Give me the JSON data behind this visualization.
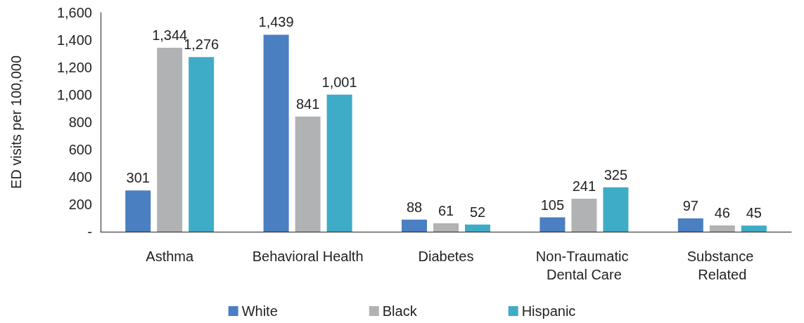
{
  "chart_data": {
    "type": "bar",
    "ylabel": "ED visits per 100,000",
    "categories": [
      "Asthma",
      "Behavioral Health",
      "Diabetes",
      "Non-Traumatic Dental Care",
      "Substance Related"
    ],
    "series": [
      {
        "name": "White",
        "color": "#4a7fc1",
        "values": [
          301,
          1439,
          88,
          105,
          97
        ],
        "value_labels": [
          "301",
          "1,439",
          "88",
          "105",
          "97"
        ]
      },
      {
        "name": "Black",
        "color": "#b1b2b4",
        "values": [
          1344,
          841,
          61,
          241,
          46
        ],
        "value_labels": [
          "1,344",
          "841",
          "61",
          "241",
          "46"
        ]
      },
      {
        "name": "Hispanic",
        "color": "#3eacc6",
        "values": [
          1276,
          1001,
          52,
          325,
          45
        ],
        "value_labels": [
          "1,276",
          "1,001",
          "52",
          "325",
          "45"
        ]
      }
    ],
    "ylim": [
      0,
      1600
    ],
    "yticks": [
      {
        "value": 0,
        "label": "-"
      },
      {
        "value": 200,
        "label": "200"
      },
      {
        "value": 400,
        "label": "400"
      },
      {
        "value": 600,
        "label": "600"
      },
      {
        "value": 800,
        "label": "800"
      },
      {
        "value": 1000,
        "label": "1,000"
      },
      {
        "value": 1200,
        "label": "1,200"
      },
      {
        "value": 1400,
        "label": "1,400"
      },
      {
        "value": 1600,
        "label": "1,600"
      }
    ],
    "grid": false,
    "legend": "bottom"
  }
}
